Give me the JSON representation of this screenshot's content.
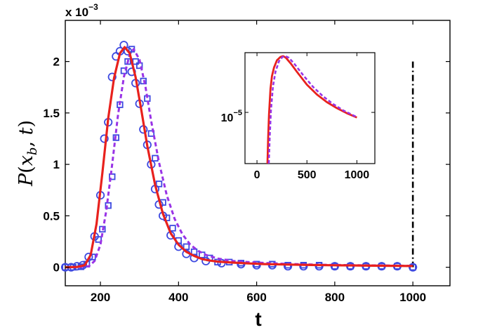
{
  "chart_data": [
    {
      "type": "line",
      "title": "",
      "xlabel": "t",
      "ylabel": "P(x_b, t)",
      "ylabel_parts": {
        "script": "P",
        "open": "(",
        "var1": "x",
        "sub": "b",
        "sep": ", ",
        "var2": "t",
        "close": ")"
      },
      "y_scale_label": {
        "prefix": "x 10",
        "exponent": "−3"
      },
      "xlim": [
        110,
        1095
      ],
      "ylim": [
        -0.18,
        2.4
      ],
      "x_ticks": [
        200,
        400,
        600,
        800,
        1000
      ],
      "x_tick_labels": [
        "200",
        "400",
        "600",
        "800",
        "1000"
      ],
      "y_ticks": [
        0,
        0.5,
        1,
        1.5,
        2
      ],
      "y_tick_labels": [
        "0",
        "0.5",
        "1",
        "1.5",
        "2"
      ],
      "grid": false,
      "vertical_marker": {
        "x": 1000,
        "y_top": 2.0,
        "style": "dash-dot",
        "color": "#000000"
      },
      "series": [
        {
          "name": "theory-solid",
          "style": "solid",
          "color": "#e8211d",
          "x": [
            110,
            140,
            160,
            175,
            190,
            205,
            220,
            235,
            250,
            262,
            275,
            290,
            305,
            320,
            340,
            360,
            380,
            400,
            420,
            440,
            460,
            480,
            500,
            540,
            580,
            620,
            680,
            740,
            800,
            900,
            1000
          ],
          "y": [
            0,
            0.003,
            0.02,
            0.12,
            0.42,
            0.92,
            1.45,
            1.84,
            2.08,
            2.14,
            2.08,
            1.85,
            1.52,
            1.18,
            0.8,
            0.52,
            0.33,
            0.22,
            0.15,
            0.11,
            0.08,
            0.065,
            0.055,
            0.045,
            0.037,
            0.031,
            0.026,
            0.022,
            0.019,
            0.015,
            0.012
          ]
        },
        {
          "name": "theory-dashed",
          "style": "dashed",
          "color": "#9933e6",
          "x": [
            110,
            150,
            170,
            185,
            200,
            215,
            230,
            245,
            260,
            275,
            285,
            300,
            315,
            330,
            350,
            370,
            390,
            410,
            430,
            450,
            470,
            500,
            540,
            600,
            680,
            760,
            850,
            1000
          ],
          "y": [
            0,
            0.002,
            0.01,
            0.06,
            0.22,
            0.55,
            1.0,
            1.48,
            1.85,
            2.07,
            2.12,
            2.02,
            1.76,
            1.42,
            1.02,
            0.7,
            0.47,
            0.32,
            0.22,
            0.16,
            0.12,
            0.085,
            0.06,
            0.045,
            0.032,
            0.025,
            0.02,
            0.014
          ]
        },
        {
          "name": "simulation-circles",
          "marker": "circle",
          "color": "#3d49e0",
          "x": [
            110,
            125,
            140,
            155,
            170,
            185,
            200,
            210,
            220,
            230,
            240,
            250,
            260,
            270,
            280,
            290,
            300,
            310,
            320,
            330,
            340,
            350,
            360,
            380,
            400,
            420,
            440,
            470,
            510,
            560,
            600,
            640,
            680,
            720,
            760,
            800,
            840,
            880,
            920,
            960,
            1000
          ],
          "y": [
            0,
            0,
            0.01,
            0.02,
            0.1,
            0.3,
            0.7,
            1.25,
            1.41,
            1.85,
            2.05,
            2.1,
            2.16,
            2.1,
            1.9,
            1.79,
            1.59,
            1.34,
            1.19,
            1.0,
            0.76,
            0.61,
            0.5,
            0.31,
            0.2,
            0.13,
            0.09,
            0.06,
            0.04,
            0.03,
            0.02,
            0.02,
            0.01,
            0.01,
            0.01,
            0.01,
            0.01,
            0.01,
            0.01,
            0.01,
            0.0
          ]
        },
        {
          "name": "simulation-squares",
          "marker": "square",
          "color": "#3d49e0",
          "x": [
            110,
            130,
            150,
            165,
            180,
            195,
            205,
            220,
            230,
            240,
            250,
            260,
            270,
            280,
            290,
            300,
            310,
            320,
            330,
            340,
            350,
            360,
            370,
            385,
            400,
            420,
            440,
            460,
            480,
            500,
            530,
            560,
            600,
            640,
            680,
            720,
            760,
            800,
            840,
            880,
            920,
            960,
            1000
          ],
          "y": [
            0,
            0,
            0.005,
            0.03,
            0.1,
            0.27,
            0.37,
            0.6,
            0.88,
            1.26,
            1.58,
            1.91,
            2.0,
            2.12,
            2.0,
            1.96,
            1.81,
            1.64,
            1.3,
            1.06,
            0.81,
            0.63,
            0.48,
            0.38,
            0.26,
            0.2,
            0.15,
            0.12,
            0.09,
            0.05,
            0.05,
            0.04,
            0.03,
            0.03,
            0.02,
            0.02,
            0.02,
            0.01,
            0.01,
            0.01,
            0.01,
            0.01,
            0.0
          ]
        }
      ]
    },
    {
      "type": "line",
      "title": "",
      "xlabel": "",
      "ylabel": "",
      "yscale": "log",
      "xlim": [
        -120,
        1180
      ],
      "x_ticks": [
        0,
        500,
        1000
      ],
      "x_tick_labels": [
        "0",
        "500",
        "1000"
      ],
      "y_tick_value": 1e-05,
      "y_tick_label": {
        "base": "10",
        "exponent": "−5"
      },
      "ylim_log10": [
        -6.2,
        -3.6
      ],
      "grid": false,
      "series": [
        {
          "name": "inset-solid",
          "style": "solid",
          "color": "#e8211d",
          "x": [
            105,
            112,
            120,
            135,
            150,
            170,
            200,
            235,
            262,
            290,
            340,
            400,
            500,
            600,
            700,
            800,
            900,
            1000
          ],
          "y_log10": [
            -6.2,
            -5.6,
            -5.05,
            -4.45,
            -4.15,
            -3.95,
            -3.78,
            -3.7,
            -3.68,
            -3.72,
            -3.86,
            -4.05,
            -4.35,
            -4.58,
            -4.76,
            -4.9,
            -5.02,
            -5.12
          ]
        },
        {
          "name": "inset-dashed",
          "style": "dashed",
          "color": "#9933e6",
          "x": [
            118,
            128,
            140,
            160,
            185,
            220,
            255,
            285,
            320,
            380,
            460,
            560,
            660,
            760,
            860,
            1000
          ],
          "y_log10": [
            -6.2,
            -5.55,
            -4.95,
            -4.4,
            -4.05,
            -3.8,
            -3.7,
            -3.68,
            -3.72,
            -3.88,
            -4.12,
            -4.4,
            -4.62,
            -4.8,
            -4.95,
            -5.11
          ]
        }
      ]
    }
  ]
}
